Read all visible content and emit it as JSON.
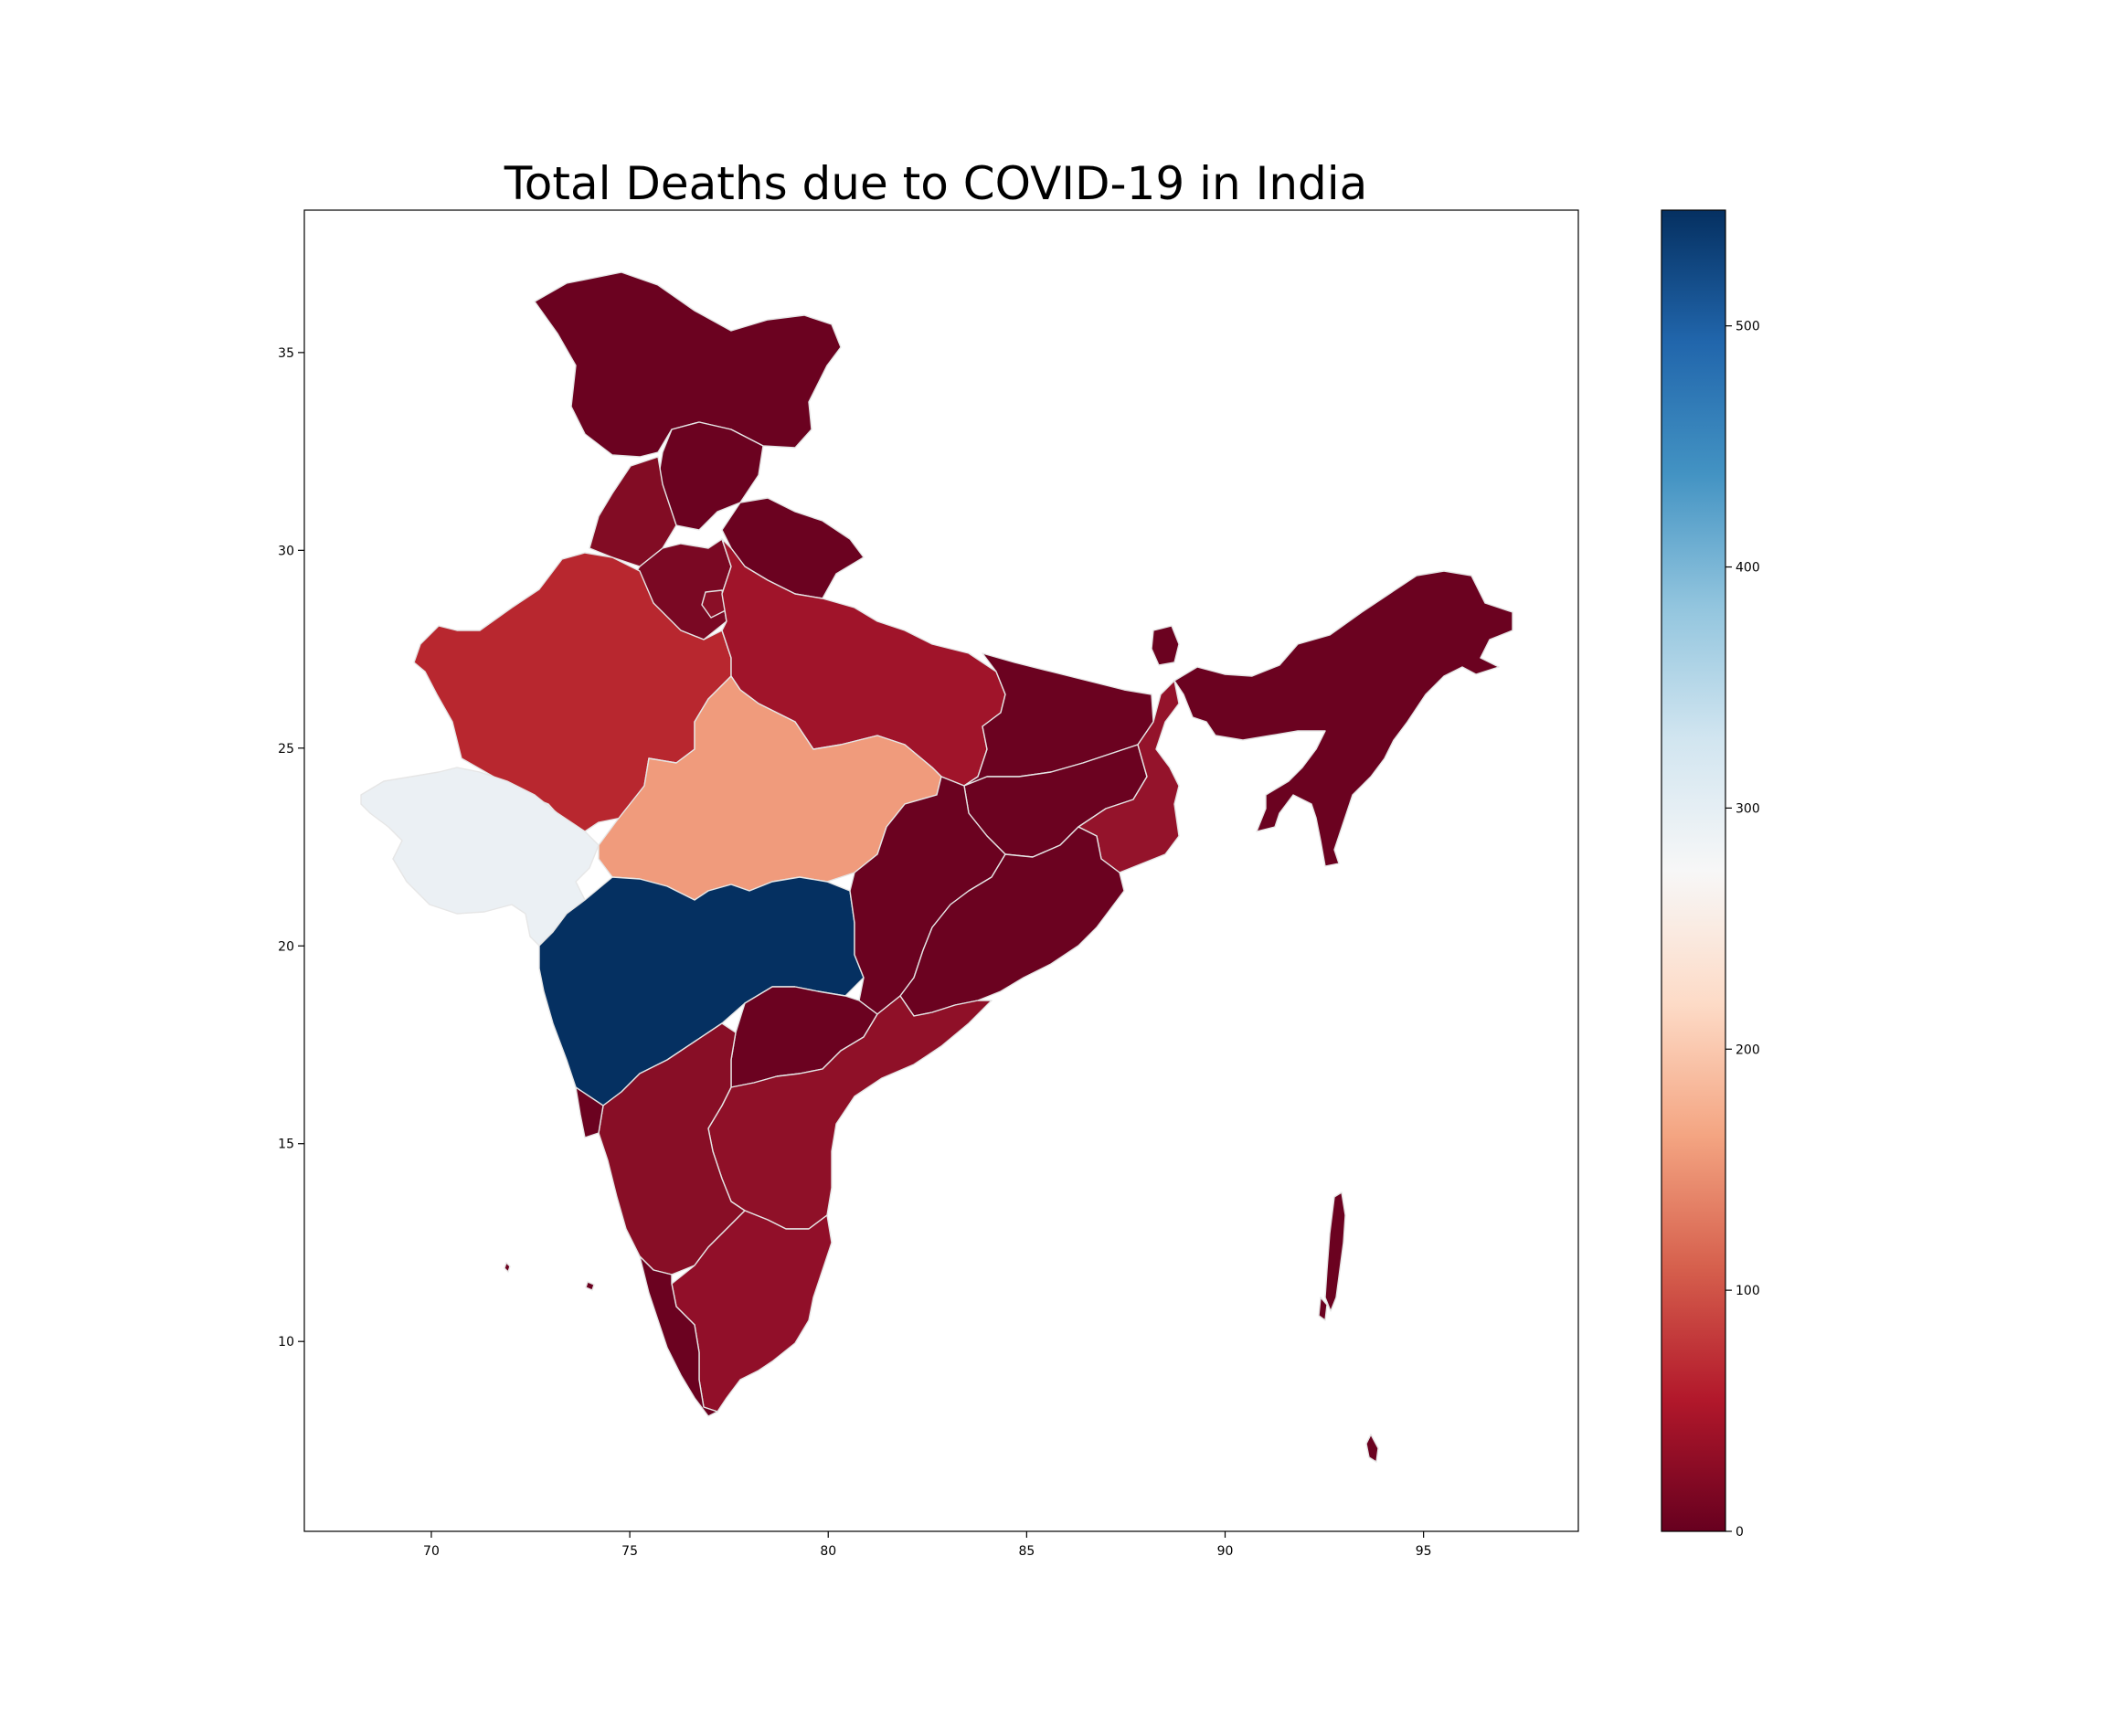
{
  "title": "Total Deaths due to COVID-19 in India",
  "x_ticks": [
    "70",
    "75",
    "80",
    "85",
    "90",
    "95"
  ],
  "y_ticks": [
    "35",
    "30",
    "25",
    "20",
    "15",
    "10"
  ],
  "x_tick_values": [
    70,
    75,
    80,
    85,
    90,
    95
  ],
  "y_tick_values": [
    35,
    30,
    25,
    20,
    15,
    10
  ],
  "xlim": [
    66.8,
    98.9
  ],
  "ylim": [
    5.2,
    38.6
  ],
  "colorbar": {
    "ticks": [
      "0",
      "100",
      "200",
      "300",
      "400",
      "500"
    ],
    "tick_values": [
      0,
      100,
      200,
      300,
      400,
      500
    ],
    "range": [
      0,
      548
    ],
    "colormap": "RdBu",
    "colors": [
      "#67001f",
      "#b2182b",
      "#d6604d",
      "#f4a582",
      "#fddbc7",
      "#f7f7f7",
      "#d1e5f0",
      "#92c5de",
      "#4393c3",
      "#2166ac",
      "#053061"
    ]
  },
  "regions": [
    {
      "id": "jammu-kashmir",
      "fill": "#6b0220"
    },
    {
      "id": "himachal-pradesh",
      "fill": "#6b0220"
    },
    {
      "id": "punjab",
      "fill": "#820c24"
    },
    {
      "id": "uttarakhand",
      "fill": "#6b0220"
    },
    {
      "id": "haryana",
      "fill": "#7a0823"
    },
    {
      "id": "delhi",
      "fill": "#8a0f27"
    },
    {
      "id": "rajasthan",
      "fill": "#b8272f"
    },
    {
      "id": "uttar-pradesh",
      "fill": "#a0142a"
    },
    {
      "id": "gujarat",
      "fill": "#ebf0f4"
    },
    {
      "id": "madhya-pradesh",
      "fill": "#f09b7c"
    },
    {
      "id": "maharashtra",
      "fill": "#053061"
    },
    {
      "id": "bihar",
      "fill": "#6b0220"
    },
    {
      "id": "jharkhand",
      "fill": "#6b0220"
    },
    {
      "id": "west-bengal",
      "fill": "#94132b"
    },
    {
      "id": "chhattisgarh",
      "fill": "#6b0220"
    },
    {
      "id": "odisha",
      "fill": "#6b0220"
    },
    {
      "id": "telangana",
      "fill": "#6b0220"
    },
    {
      "id": "andhra-pradesh",
      "fill": "#8f1028"
    },
    {
      "id": "karnataka",
      "fill": "#880e26"
    },
    {
      "id": "goa",
      "fill": "#6b0220"
    },
    {
      "id": "tamil-nadu",
      "fill": "#910f29"
    },
    {
      "id": "kerala",
      "fill": "#6b0220"
    },
    {
      "id": "sikkim",
      "fill": "#6b0220"
    },
    {
      "id": "north-east",
      "fill": "#6b0220"
    },
    {
      "id": "andaman-nicobar",
      "fill": "#6b0220"
    },
    {
      "id": "lakshadweep",
      "fill": "#6b0220"
    }
  ]
}
